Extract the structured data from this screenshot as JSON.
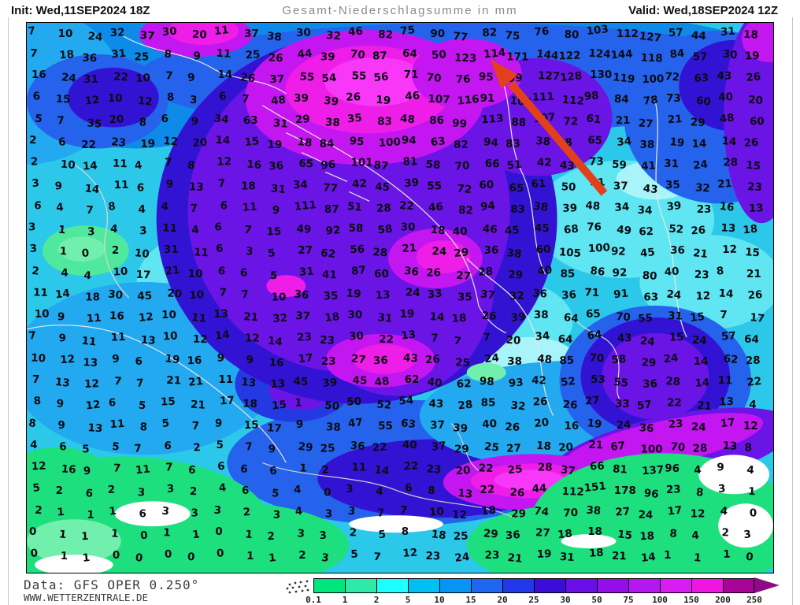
{
  "page": {
    "background": "#ffffff"
  },
  "header": {
    "init_label": "Init: Wed,11SEP2024 18Z",
    "title": "Gesamt-Niederschlagsumme in mm",
    "valid_label": "Valid: Wed,18SEP2024 12Z"
  },
  "footer": {
    "data_source": "Data: GFS OPER 0.250°",
    "website": "WWW.WETTERZENTRALE.DE"
  },
  "colorbar": {
    "unit": "mm",
    "labels": [
      "0.1",
      "1",
      "2",
      "5",
      "10",
      "15",
      "20",
      "25",
      "30",
      "50",
      "75",
      "100",
      "150",
      "200",
      "250"
    ],
    "colors": [
      "#00E57C",
      "#2FE9A8",
      "#1EFFFF",
      "#00BFF5",
      "#0795F5",
      "#1F66F0",
      "#2038E8",
      "#3A0ED8",
      "#6A0EE8",
      "#950DE8",
      "#B517F0",
      "#D81CF2",
      "#EE16E0",
      "#A80597"
    ],
    "overflow_color": "#8C0B85"
  },
  "map": {
    "annotation_arrow": {
      "color": "#E2401B",
      "direction": "pointing-upper-left"
    },
    "numbers_grid": {
      "rows": [
        [
          "7",
          "10",
          "24",
          "32",
          "37",
          "30",
          "20",
          "11",
          "37",
          "38",
          "30",
          "32",
          "46",
          "82",
          "75",
          "90",
          "77",
          "82",
          "75",
          "76",
          "80",
          "103",
          "112",
          "127",
          "57",
          "44",
          "31",
          "18"
        ],
        [
          "7",
          "18",
          "36",
          "31",
          "25",
          "8",
          "9",
          "11",
          "25",
          "26",
          "44",
          "39",
          "70",
          "87",
          "64",
          "50",
          "123",
          "114",
          "171",
          "144",
          "122",
          "124",
          "144",
          "118",
          "84",
          "57",
          "30",
          "19"
        ],
        [
          "16",
          "24",
          "31",
          "22",
          "10",
          "7",
          "9",
          "14",
          "26",
          "37",
          "55",
          "54",
          "55",
          "56",
          "71",
          "70",
          "76",
          "95",
          "99",
          "127",
          "128",
          "130",
          "119",
          "100",
          "72",
          "63",
          "43",
          "26"
        ],
        [
          "6",
          "15",
          "12",
          "10",
          "12",
          "8",
          "3",
          "6",
          "7",
          "48",
          "39",
          "39",
          "26",
          "19",
          "46",
          "107",
          "116",
          "91",
          "105",
          "111",
          "112",
          "98",
          "84",
          "78",
          "73",
          "60",
          "40",
          "20"
        ],
        [
          "5",
          "7",
          "35",
          "20",
          "8",
          "6",
          "9",
          "34",
          "63",
          "31",
          "29",
          "38",
          "35",
          "83",
          "48",
          "86",
          "99",
          "113",
          "88",
          "107",
          "72",
          "61",
          "21",
          "27",
          "21",
          "29",
          "48",
          "60"
        ],
        [
          "2",
          "6",
          "22",
          "23",
          "19",
          "12",
          "20",
          "14",
          "15",
          "19",
          "18",
          "84",
          "95",
          "100",
          "94",
          "63",
          "82",
          "94",
          "83",
          "38",
          "48",
          "65",
          "34",
          "38",
          "19",
          "14",
          "14",
          "26"
        ],
        [
          "2",
          "10",
          "14",
          "11",
          "4",
          "7",
          "8",
          "12",
          "16",
          "36",
          "65",
          "96",
          "101",
          "87",
          "81",
          "58",
          "70",
          "66",
          "51",
          "42",
          "43",
          "73",
          "59",
          "41",
          "31",
          "24",
          "28",
          "15"
        ],
        [
          "3",
          "9",
          "14",
          "11",
          "6",
          "9",
          "13",
          "7",
          "18",
          "31",
          "34",
          "77",
          "42",
          "45",
          "39",
          "55",
          "72",
          "60",
          "65",
          "61",
          "50",
          "41",
          "37",
          "43",
          "35",
          "32",
          "21",
          "23"
        ],
        [
          "6",
          "4",
          "7",
          "8",
          "4",
          "4",
          "7",
          "6",
          "11",
          "9",
          "111",
          "87",
          "51",
          "28",
          "22",
          "46",
          "82",
          "94",
          "83",
          "38",
          "39",
          "48",
          "34",
          "34",
          "39",
          "23",
          "16",
          "13"
        ],
        [
          "3",
          "1",
          "3",
          "4",
          "3",
          "11",
          "4",
          "6",
          "7",
          "15",
          "49",
          "92",
          "58",
          "58",
          "30",
          "18",
          "40",
          "46",
          "45",
          "45",
          "68",
          "76",
          "49",
          "62",
          "52",
          "26",
          "13",
          "18"
        ],
        [
          "3",
          "1",
          "0",
          "2",
          "10",
          "31",
          "11",
          "6",
          "3",
          "5",
          "27",
          "62",
          "56",
          "28",
          "21",
          "24",
          "29",
          "36",
          "38",
          "60",
          "105",
          "100",
          "92",
          "45",
          "36",
          "21",
          "12",
          "15"
        ],
        [
          "2",
          "4",
          "4",
          "10",
          "17",
          "21",
          "10",
          "6",
          "6",
          "5",
          "31",
          "41",
          "87",
          "60",
          "36",
          "26",
          "27",
          "28",
          "29",
          "40",
          "85",
          "86",
          "92",
          "80",
          "40",
          "23",
          "8",
          "21"
        ],
        [
          "11",
          "14",
          "18",
          "30",
          "45",
          "20",
          "10",
          "7",
          "7",
          "10",
          "36",
          "35",
          "19",
          "13",
          "24",
          "33",
          "35",
          "37",
          "32",
          "36",
          "36",
          "71",
          "91",
          "63",
          "24",
          "12",
          "14",
          "26"
        ],
        [
          "10",
          "9",
          "11",
          "16",
          "12",
          "10",
          "11",
          "13",
          "21",
          "32",
          "37",
          "18",
          "30",
          "31",
          "19",
          "14",
          "18",
          "26",
          "39",
          "38",
          "64",
          "65",
          "70",
          "55",
          "31",
          "15",
          "7",
          "17"
        ],
        [
          "7",
          "9",
          "11",
          "11",
          "13",
          "10",
          "12",
          "14",
          "12",
          "14",
          "23",
          "23",
          "30",
          "22",
          "13",
          "7",
          "7",
          "7",
          "20",
          "34",
          "64",
          "64",
          "43",
          "24",
          "15",
          "24",
          "57",
          "64"
        ],
        [
          "10",
          "12",
          "13",
          "9",
          "6",
          "19",
          "16",
          "9",
          "9",
          "16",
          "17",
          "23",
          "27",
          "36",
          "43",
          "26",
          "25",
          "24",
          "38",
          "48",
          "85",
          "70",
          "58",
          "29",
          "24",
          "14",
          "62",
          "28"
        ],
        [
          "7",
          "13",
          "12",
          "7",
          "7",
          "21",
          "21",
          "11",
          "13",
          "13",
          "45",
          "39",
          "45",
          "48",
          "62",
          "40",
          "62",
          "98",
          "93",
          "42",
          "52",
          "53",
          "55",
          "36",
          "28",
          "14",
          "11",
          "22"
        ],
        [
          "8",
          "9",
          "12",
          "6",
          "5",
          "15",
          "21",
          "17",
          "18",
          "15",
          "1",
          "50",
          "50",
          "52",
          "54",
          "43",
          "28",
          "85",
          "32",
          "26",
          "26",
          "27",
          "33",
          "57",
          "22",
          "21",
          "13",
          "4"
        ],
        [
          "8",
          "9",
          "13",
          "11",
          "8",
          "5",
          "7",
          "9",
          "15",
          "17",
          "9",
          "38",
          "47",
          "55",
          "63",
          "37",
          "39",
          "40",
          "26",
          "20",
          "16",
          "19",
          "24",
          "36",
          "23",
          "24",
          "17",
          "12"
        ],
        [
          "4",
          "6",
          "5",
          "5",
          "7",
          "6",
          "2",
          "5",
          "7",
          "9",
          "29",
          "25",
          "36",
          "22",
          "40",
          "37",
          "29",
          "25",
          "27",
          "18",
          "20",
          "21",
          "67",
          "100",
          "70",
          "28",
          "13",
          "8"
        ],
        [
          "12",
          "16",
          "9",
          "7",
          "11",
          "7",
          "6",
          "6",
          "6",
          "6",
          "1",
          "2",
          "11",
          "14",
          "22",
          "23",
          "20",
          "22",
          "25",
          "28",
          "37",
          "66",
          "81",
          "137",
          "96",
          "4",
          "9",
          "4"
        ],
        [
          "5",
          "2",
          "6",
          "2",
          "3",
          "3",
          "2",
          "4",
          "6",
          "5",
          "4",
          "0",
          "3",
          "4",
          "6",
          "8",
          "13",
          "22",
          "26",
          "44",
          "112",
          "151",
          "178",
          "96",
          "23",
          "8",
          "3",
          "1"
        ],
        [
          "2",
          "1",
          "1",
          "1",
          "6",
          "3",
          "3",
          "3",
          "2",
          "3",
          "4",
          "3",
          "3",
          "7",
          "7",
          "10",
          "12",
          "18",
          "29",
          "74",
          "70",
          "38",
          "27",
          "24",
          "17",
          "12",
          "4",
          "0"
        ],
        [
          "0",
          "1",
          "1",
          "1",
          "0",
          "1",
          "1",
          "0",
          "1",
          "2",
          "3",
          "3",
          "2",
          "5",
          "8",
          "18",
          "25",
          "29",
          "36",
          "27",
          "18",
          "18",
          "15",
          "18",
          "8",
          "4",
          "2",
          "3"
        ],
        [
          "0",
          "1",
          "1",
          "0",
          "0",
          "0",
          "0",
          "0",
          "1",
          "1",
          "2",
          "3",
          "5",
          "7",
          "12",
          "23",
          "24",
          "23",
          "21",
          "19",
          "31",
          "18",
          "21",
          "14",
          "1",
          "1",
          "1",
          "0"
        ]
      ]
    }
  }
}
